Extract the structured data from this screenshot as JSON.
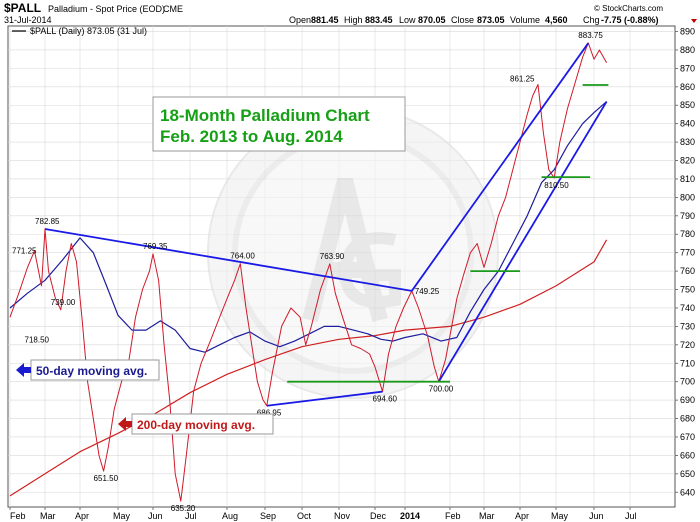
{
  "header": {
    "symbol": "$PALL",
    "name": "Palladium - Spot Price (EOD)",
    "exchange": "CME",
    "date": "31-Jul-2014",
    "watermark": "© StockCharts.com",
    "open_label": "Open",
    "open_value": "881.45",
    "high_label": "High",
    "high_value": "883.45",
    "low_label": "Low",
    "low_value": "870.05",
    "close_label": "Close",
    "close_value": "873.05",
    "volume_label": "Volume",
    "volume_value": "4,560",
    "chg_label": "Chg",
    "chg_value": "-7.75 (-0.88%)",
    "legend": "$PALL (Daily) 873.05 (31 Jul)"
  },
  "annotations": {
    "title_line1": "18-Month Palladium Chart",
    "title_line2": "Feb. 2013 to Aug. 2014",
    "ma50_label": "50-day moving avg.",
    "ma200_label": "200-day moving avg."
  },
  "colors": {
    "price": "#d01a2a",
    "ma50": "#1d1d9e",
    "ma200": "#d02020",
    "trend": "#1a1ae6",
    "support": "#1a9a1a",
    "title_text": "#16a016",
    "grid": "#d9d9d9"
  },
  "chart_data": {
    "type": "line",
    "x_axis": {
      "ticks": [
        "Feb",
        "Mar",
        "Apr",
        "May",
        "Jun",
        "Jul",
        "Aug",
        "Sep",
        "Oct",
        "Nov",
        "Dec",
        "2014",
        "Feb",
        "Mar",
        "Apr",
        "May",
        "Jun",
        "Jul"
      ]
    },
    "y_axis": {
      "min": 632,
      "max": 893,
      "ticks": [
        640,
        650,
        660,
        670,
        680,
        690,
        700,
        710,
        720,
        730,
        740,
        750,
        760,
        770,
        780,
        790,
        800,
        810,
        820,
        830,
        840,
        850,
        860,
        870,
        880,
        890
      ],
      "side": "right"
    },
    "grid": true,
    "series": [
      {
        "name": "$PALL (Daily)",
        "color": "#d01a2a",
        "points": [
          [
            0.0,
            735
          ],
          [
            0.25,
            748
          ],
          [
            0.5,
            762
          ],
          [
            0.7,
            771
          ],
          [
            0.9,
            752
          ],
          [
            1.0,
            782.85
          ],
          [
            1.1,
            760
          ],
          [
            1.3,
            745
          ],
          [
            1.45,
            739
          ],
          [
            1.6,
            760
          ],
          [
            1.75,
            775
          ],
          [
            1.9,
            765
          ],
          [
            2.05,
            735
          ],
          [
            2.2,
            700
          ],
          [
            2.35,
            680
          ],
          [
            2.5,
            660
          ],
          [
            2.62,
            651.5
          ],
          [
            2.75,
            665
          ],
          [
            2.9,
            685
          ],
          [
            3.1,
            700
          ],
          [
            3.3,
            710
          ],
          [
            3.5,
            735
          ],
          [
            3.7,
            750
          ],
          [
            3.9,
            760
          ],
          [
            4.0,
            769.35
          ],
          [
            4.15,
            755
          ],
          [
            4.3,
            720
          ],
          [
            4.45,
            690
          ],
          [
            4.6,
            650
          ],
          [
            4.75,
            635.2
          ],
          [
            4.9,
            660
          ],
          [
            5.1,
            695
          ],
          [
            5.3,
            710
          ],
          [
            5.55,
            722
          ],
          [
            5.8,
            735
          ],
          [
            6.0,
            745
          ],
          [
            6.2,
            755
          ],
          [
            6.35,
            764
          ],
          [
            6.5,
            740
          ],
          [
            6.65,
            720
          ],
          [
            6.8,
            700
          ],
          [
            6.95,
            690
          ],
          [
            7.05,
            686.95
          ],
          [
            7.2,
            705
          ],
          [
            7.45,
            730
          ],
          [
            7.7,
            740
          ],
          [
            7.95,
            735
          ],
          [
            8.1,
            720
          ],
          [
            8.25,
            730
          ],
          [
            8.5,
            750
          ],
          [
            8.75,
            763.9
          ],
          [
            8.9,
            748
          ],
          [
            9.1,
            735
          ],
          [
            9.35,
            720
          ],
          [
            9.6,
            718
          ],
          [
            9.85,
            715
          ],
          [
            10.0,
            708
          ],
          [
            10.15,
            700
          ],
          [
            10.25,
            694.6
          ],
          [
            10.45,
            715
          ],
          [
            10.7,
            730
          ],
          [
            10.95,
            740
          ],
          [
            11.15,
            749.25
          ],
          [
            11.3,
            740
          ],
          [
            11.5,
            725
          ],
          [
            11.65,
            708
          ],
          [
            11.75,
            700
          ],
          [
            11.9,
            712
          ],
          [
            12.05,
            730
          ],
          [
            12.2,
            745
          ],
          [
            12.4,
            758
          ],
          [
            12.6,
            770
          ],
          [
            12.8,
            775
          ],
          [
            13.0,
            762
          ],
          [
            13.2,
            775
          ],
          [
            13.4,
            790
          ],
          [
            13.6,
            800
          ],
          [
            13.8,
            815
          ],
          [
            14.0,
            830
          ],
          [
            14.2,
            845
          ],
          [
            14.35,
            855
          ],
          [
            14.5,
            861.25
          ],
          [
            14.65,
            835
          ],
          [
            14.8,
            815
          ],
          [
            14.95,
            810.5
          ],
          [
            15.1,
            830
          ],
          [
            15.3,
            848
          ],
          [
            15.5,
            862
          ],
          [
            15.7,
            876
          ],
          [
            15.85,
            883.75
          ],
          [
            16.0,
            875
          ],
          [
            16.15,
            880
          ],
          [
            16.35,
            873.05
          ]
        ]
      },
      {
        "name": "50-day moving avg.",
        "color": "#1d1d9e",
        "points": [
          [
            0.0,
            740
          ],
          [
            0.5,
            748
          ],
          [
            1.0,
            755
          ],
          [
            1.5,
            766
          ],
          [
            2.0,
            778
          ],
          [
            2.35,
            770
          ],
          [
            2.7,
            752
          ],
          [
            3.0,
            736
          ],
          [
            3.4,
            728
          ],
          [
            3.8,
            728
          ],
          [
            4.2,
            733
          ],
          [
            4.6,
            728
          ],
          [
            5.0,
            718
          ],
          [
            5.4,
            716
          ],
          [
            5.8,
            720
          ],
          [
            6.2,
            724
          ],
          [
            6.6,
            727
          ],
          [
            7.0,
            722
          ],
          [
            7.4,
            719
          ],
          [
            7.8,
            722
          ],
          [
            8.2,
            726
          ],
          [
            8.6,
            730
          ],
          [
            9.0,
            730
          ],
          [
            9.4,
            728
          ],
          [
            9.8,
            726
          ],
          [
            10.2,
            723
          ],
          [
            10.6,
            722
          ],
          [
            11.0,
            724
          ],
          [
            11.4,
            726
          ],
          [
            11.8,
            722
          ],
          [
            12.2,
            724
          ],
          [
            12.6,
            738
          ],
          [
            13.0,
            750
          ],
          [
            13.4,
            760
          ],
          [
            13.8,
            775
          ],
          [
            14.2,
            790
          ],
          [
            14.6,
            808
          ],
          [
            14.95,
            815
          ],
          [
            15.3,
            828
          ],
          [
            15.7,
            840
          ],
          [
            16.0,
            846
          ],
          [
            16.35,
            852
          ]
        ]
      },
      {
        "name": "200-day moving avg.",
        "color": "#d02020",
        "points": [
          [
            0.0,
            638
          ],
          [
            1.0,
            650
          ],
          [
            2.0,
            662
          ],
          [
            3.0,
            672
          ],
          [
            4.0,
            682
          ],
          [
            5.0,
            694
          ],
          [
            6.0,
            704
          ],
          [
            7.0,
            712
          ],
          [
            8.0,
            719
          ],
          [
            9.0,
            723
          ],
          [
            10.0,
            725
          ],
          [
            11.0,
            728
          ],
          [
            12.0,
            730
          ],
          [
            13.0,
            735
          ],
          [
            14.0,
            742
          ],
          [
            15.0,
            752
          ],
          [
            16.0,
            765
          ],
          [
            16.35,
            777
          ]
        ]
      }
    ],
    "trendlines": [
      {
        "kind": "resistance",
        "points": [
          [
            1.0,
            782.85
          ],
          [
            11.15,
            749.25
          ]
        ]
      },
      {
        "kind": "support",
        "points": [
          [
            7.05,
            686.95
          ],
          [
            10.25,
            694.6
          ]
        ]
      },
      {
        "kind": "channel-top",
        "points": [
          [
            11.15,
            749.25
          ],
          [
            15.85,
            883.75
          ]
        ]
      },
      {
        "kind": "channel-bottom",
        "points": [
          [
            11.75,
            700
          ],
          [
            16.35,
            852
          ]
        ]
      },
      {
        "kind": "level",
        "points": [
          [
            7.6,
            700
          ],
          [
            12.0,
            700
          ]
        ]
      },
      {
        "kind": "level",
        "points": [
          [
            12.6,
            760
          ],
          [
            14.0,
            760
          ]
        ]
      },
      {
        "kind": "level",
        "points": [
          [
            14.6,
            811
          ],
          [
            15.9,
            811
          ]
        ]
      },
      {
        "kind": "level",
        "points": [
          [
            15.7,
            861
          ],
          [
            16.4,
            861
          ]
        ]
      }
    ],
    "labels": [
      {
        "x": 0.0,
        "y": 771.25,
        "text": "771.25"
      },
      {
        "x": 1.0,
        "y": 782.85,
        "text": "782.85"
      },
      {
        "x": 1.45,
        "y": 739,
        "text": "739.00"
      },
      {
        "x": 0.7,
        "y": 718.5,
        "text": "718.50"
      },
      {
        "x": 2.62,
        "y": 651.5,
        "text": "651.50"
      },
      {
        "x": 4.0,
        "y": 769.35,
        "text": "769.35"
      },
      {
        "x": 4.75,
        "y": 635.2,
        "text": "635.20"
      },
      {
        "x": 6.35,
        "y": 764,
        "text": "764.00"
      },
      {
        "x": 7.05,
        "y": 686.95,
        "text": "686.95"
      },
      {
        "x": 8.75,
        "y": 763.9,
        "text": "763.90"
      },
      {
        "x": 10.25,
        "y": 694.6,
        "text": "694.60"
      },
      {
        "x": 11.15,
        "y": 749.25,
        "text": "749.25"
      },
      {
        "x": 11.75,
        "y": 700,
        "text": "700.00"
      },
      {
        "x": 14.5,
        "y": 861.25,
        "text": "861.25"
      },
      {
        "x": 14.95,
        "y": 810.5,
        "text": "810.50"
      },
      {
        "x": 15.85,
        "y": 883.75,
        "text": "883.75"
      }
    ]
  }
}
